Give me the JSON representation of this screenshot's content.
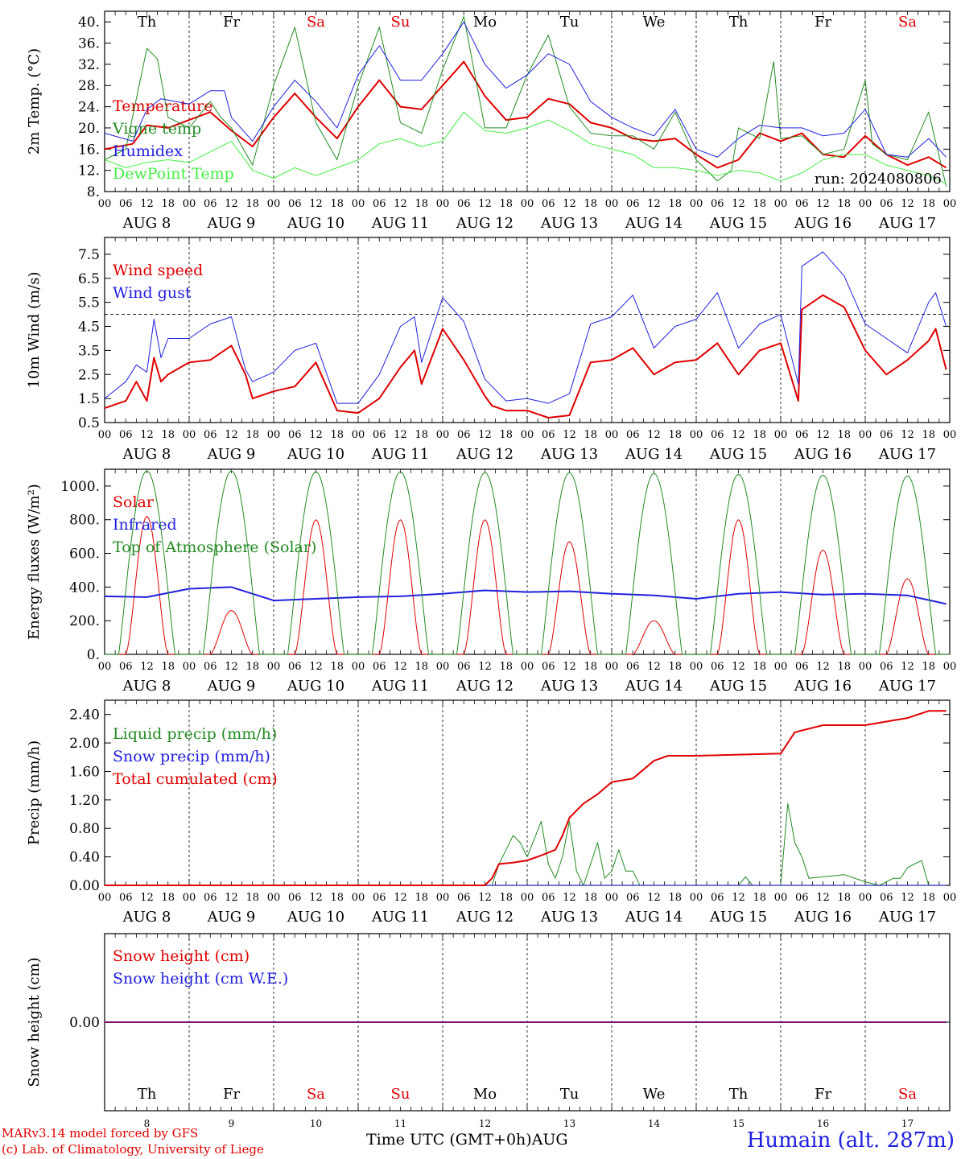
{
  "chart_data": [
    {
      "type": "line",
      "ylabel": "2m Temp. (°C)",
      "ylim": [
        8,
        42
      ],
      "yticks": [
        "8.",
        "12.",
        "16.",
        "20.",
        "24.",
        "28.",
        "32.",
        "36.",
        "40."
      ],
      "annotation": "run: 2024080806",
      "top_day_labels": [
        {
          "text": "Th",
          "color": "#000000"
        },
        {
          "text": "Fr",
          "color": "#000000"
        },
        {
          "text": "Sa",
          "color": "#e00000"
        },
        {
          "text": "Su",
          "color": "#e00000"
        },
        {
          "text": "Mo",
          "color": "#000000"
        },
        {
          "text": "Tu",
          "color": "#000000"
        },
        {
          "text": "We",
          "color": "#000000"
        },
        {
          "text": "Th",
          "color": "#000000"
        },
        {
          "text": "Fr",
          "color": "#000000"
        },
        {
          "text": "Sa",
          "color": "#e00000"
        }
      ],
      "series": [
        {
          "name": "Temperature",
          "color": "#e00000",
          "width": 2,
          "x": [
            0,
            8,
            12,
            18,
            24,
            30,
            36,
            42,
            48,
            54,
            60,
            66,
            72,
            78,
            84,
            90,
            96,
            102,
            108,
            114,
            120,
            126,
            132,
            138,
            144,
            150,
            156,
            162,
            168,
            174,
            180,
            186,
            192,
            198,
            204,
            210,
            216,
            222,
            228,
            234,
            239
          ],
          "values": [
            16,
            17,
            20.5,
            20,
            21.5,
            23,
            19.5,
            16.5,
            22,
            26.5,
            22,
            18,
            24,
            29,
            24,
            23.5,
            28,
            32.5,
            26,
            21.5,
            22,
            25.5,
            24.5,
            21,
            20,
            18,
            17.5,
            18,
            15,
            12.5,
            14,
            19,
            17.5,
            19,
            15,
            14.5,
            18.5,
            15,
            13,
            14.5,
            12.5
          ]
        },
        {
          "name": "Vigne temp",
          "color": "#228b22",
          "width": 1,
          "x": [
            0,
            6,
            12,
            15,
            18,
            24,
            30,
            33,
            36,
            42,
            48,
            54,
            60,
            66,
            72,
            78,
            84,
            90,
            96,
            102,
            108,
            114,
            120,
            126,
            132,
            138,
            144,
            150,
            156,
            162,
            168,
            174,
            178,
            180,
            186,
            190,
            192,
            198,
            204,
            210,
            216,
            218,
            222,
            228,
            234,
            239
          ],
          "values": [
            14,
            16,
            35,
            33,
            22,
            20,
            25,
            22,
            20,
            13,
            28,
            39,
            21,
            14,
            28,
            39,
            21,
            19,
            31,
            41,
            20,
            20,
            30,
            37.5,
            24,
            19,
            18.5,
            18.5,
            16,
            23,
            14,
            10,
            12,
            20,
            18,
            32.5,
            18,
            18.5,
            15,
            16,
            29,
            17,
            15,
            14,
            23,
            9
          ]
        },
        {
          "name": "Humidex",
          "color": "#2020e0",
          "width": 1,
          "x": [
            0,
            8,
            12,
            16,
            20,
            24,
            30,
            34,
            36,
            42,
            48,
            54,
            60,
            66,
            72,
            78,
            84,
            90,
            96,
            102,
            108,
            114,
            120,
            126,
            132,
            138,
            144,
            150,
            156,
            162,
            168,
            174,
            180,
            186,
            192,
            198,
            204,
            210,
            216,
            222,
            228,
            234,
            239
          ],
          "values": [
            19,
            17.5,
            23.5,
            25.5,
            25,
            24.5,
            27,
            27,
            22,
            17.5,
            24,
            29,
            25,
            20,
            30,
            35.5,
            29,
            29,
            34,
            40,
            32,
            27.5,
            30,
            34,
            32,
            25,
            22,
            20,
            18.5,
            23.5,
            16,
            14.5,
            18,
            20.5,
            20,
            20,
            18.5,
            19,
            23.5,
            15,
            14.5,
            18,
            14.5
          ]
        },
        {
          "name": "DewPoint Temp",
          "color": "#44ee44",
          "width": 1,
          "x": [
            0,
            6,
            12,
            18,
            24,
            30,
            36,
            42,
            48,
            54,
            60,
            66,
            72,
            78,
            84,
            90,
            96,
            102,
            108,
            114,
            120,
            126,
            132,
            138,
            144,
            150,
            156,
            162,
            168,
            174,
            180,
            186,
            192,
            198,
            204,
            210,
            216,
            222,
            228,
            234,
            239
          ],
          "values": [
            14,
            12.5,
            13.5,
            14,
            13.5,
            15.5,
            17.5,
            12,
            10.5,
            12.5,
            11,
            12.5,
            14,
            17,
            18,
            16.5,
            17.5,
            23,
            19.5,
            19,
            20,
            21.5,
            19.5,
            17,
            16,
            15,
            12.5,
            12.5,
            12,
            11,
            12,
            11.5,
            10,
            11.5,
            14,
            15,
            15,
            13,
            12,
            11,
            9.5
          ]
        }
      ]
    },
    {
      "type": "line",
      "ylabel": "10m Wind (m/s)",
      "ylim": [
        0.5,
        8.2
      ],
      "yticks": [
        "0.5",
        "1.5",
        "2.5",
        "3.5",
        "4.5",
        "5.5",
        "6.5",
        "7.5"
      ],
      "reference_line": 5,
      "series": [
        {
          "name": "Wind speed",
          "color": "#e00000",
          "width": 2,
          "x": [
            0,
            6,
            9,
            12,
            14,
            16,
            18,
            24,
            30,
            36,
            40,
            42,
            48,
            54,
            60,
            66,
            72,
            78,
            84,
            88,
            90,
            96,
            102,
            108,
            110,
            114,
            120,
            126,
            132,
            138,
            144,
            150,
            156,
            162,
            168,
            174,
            180,
            186,
            192,
            197,
            198,
            204,
            210,
            216,
            222,
            228,
            234,
            236,
            239
          ],
          "values": [
            1.1,
            1.4,
            2.2,
            1.4,
            3.2,
            2.2,
            2.5,
            3,
            3.1,
            3.7,
            2.5,
            1.5,
            1.8,
            2,
            3,
            1,
            0.9,
            1.5,
            2.8,
            3.5,
            2.1,
            4.4,
            3.1,
            1.6,
            1.2,
            1,
            1,
            0.7,
            0.8,
            3,
            3.1,
            3.6,
            2.5,
            3,
            3.1,
            3.8,
            2.5,
            3.5,
            3.8,
            1.4,
            5.2,
            5.8,
            5.3,
            3.5,
            2.5,
            3.1,
            3.9,
            4.4,
            2.7
          ]
        },
        {
          "name": "Wind gust",
          "color": "#2020e0",
          "width": 1,
          "x": [
            0,
            6,
            9,
            12,
            14,
            16,
            18,
            24,
            30,
            36,
            40,
            42,
            48,
            54,
            60,
            66,
            72,
            78,
            84,
            88,
            90,
            96,
            102,
            108,
            110,
            114,
            120,
            126,
            132,
            138,
            144,
            150,
            156,
            162,
            168,
            174,
            180,
            186,
            192,
            197,
            198,
            204,
            210,
            216,
            222,
            228,
            234,
            236,
            239
          ],
          "values": [
            1.5,
            2.2,
            2.9,
            2.6,
            4.8,
            3.2,
            4,
            4,
            4.6,
            4.9,
            2.7,
            2.2,
            2.6,
            3.5,
            3.8,
            1.3,
            1.3,
            2.5,
            4.5,
            4.9,
            3,
            5.7,
            4.7,
            2.3,
            2,
            1.4,
            1.5,
            1.3,
            1.7,
            4.6,
            4.9,
            5.8,
            3.6,
            4.5,
            4.8,
            5.9,
            3.6,
            4.6,
            5,
            2.1,
            7,
            7.6,
            6.6,
            4.6,
            4,
            3.4,
            5.5,
            5.9,
            4.5
          ]
        }
      ]
    },
    {
      "type": "line",
      "ylabel": "Energy fluxes (W/m²)",
      "ylim": [
        0,
        1100
      ],
      "yticks": [
        "0.",
        "200.",
        "400.",
        "600.",
        "800.",
        "1000."
      ],
      "series": [
        {
          "name": "Solar",
          "color": "#e00000",
          "width": 1,
          "daily_peaks": [
            820,
            260,
            800,
            800,
            800,
            670,
            200,
            800,
            620,
            450
          ]
        },
        {
          "name": "Infrared",
          "color": "#2020e0",
          "width": 2,
          "x": [
            0,
            12,
            24,
            36,
            48,
            60,
            72,
            84,
            96,
            108,
            120,
            132,
            144,
            156,
            168,
            180,
            192,
            204,
            216,
            228,
            239
          ],
          "values": [
            345,
            340,
            390,
            400,
            320,
            330,
            340,
            345,
            360,
            380,
            370,
            375,
            360,
            350,
            330,
            360,
            370,
            355,
            360,
            350,
            300
          ]
        },
        {
          "name": "Top of Atmosphere (Solar)",
          "color": "#228b22",
          "width": 1,
          "daily_peaks": [
            1090,
            1090,
            1085,
            1085,
            1080,
            1080,
            1075,
            1070,
            1065,
            1060
          ]
        }
      ]
    },
    {
      "type": "line",
      "ylabel": "Precip (mm/h)",
      "ylim": [
        0,
        2.6
      ],
      "yticks": [
        "0.00",
        "0.40",
        "0.80",
        "1.20",
        "1.60",
        "2.00",
        "2.40"
      ],
      "series": [
        {
          "name": "Liquid precip (mm/h)",
          "color": "#228b22",
          "width": 1,
          "x": [
            0,
            110,
            112,
            114,
            116,
            118,
            120,
            124,
            126,
            128,
            130,
            132,
            134,
            136,
            138,
            140,
            142,
            144,
            146,
            148,
            150,
            152,
            154,
            156,
            158,
            160,
            180,
            182,
            184,
            192,
            194,
            196,
            198,
            200,
            210,
            216,
            220,
            224,
            226,
            228,
            230,
            232,
            234,
            239
          ],
          "values": [
            0,
            0,
            0.3,
            0.5,
            0.7,
            0.6,
            0.4,
            0.9,
            0.3,
            0.1,
            0.4,
            0.9,
            0.2,
            0,
            0.3,
            0.6,
            0.1,
            0.2,
            0.5,
            0.2,
            0.2,
            0,
            0,
            0,
            0,
            0,
            0,
            0.12,
            0,
            0,
            1.15,
            0.6,
            0.4,
            0.1,
            0.15,
            0.05,
            0,
            0.1,
            0.1,
            0.25,
            0.3,
            0.35,
            0,
            0
          ]
        },
        {
          "name": "Snow precip (mm/h)",
          "color": "#2020e0",
          "width": 1,
          "x": [
            0,
            239
          ],
          "values": [
            0,
            0
          ]
        },
        {
          "name": "Total cumulated (cm)",
          "color": "#e00000",
          "width": 2,
          "x": [
            0,
            108,
            110,
            112,
            116,
            120,
            124,
            128,
            130,
            132,
            136,
            140,
            144,
            150,
            156,
            160,
            168,
            192,
            196,
            200,
            204,
            210,
            216,
            222,
            228,
            234,
            239
          ],
          "values": [
            0,
            0,
            0.1,
            0.3,
            0.32,
            0.35,
            0.42,
            0.5,
            0.7,
            0.95,
            1.15,
            1.28,
            1.45,
            1.5,
            1.75,
            1.82,
            1.82,
            1.85,
            2.15,
            2.2,
            2.25,
            2.25,
            2.25,
            2.3,
            2.35,
            2.45,
            2.45
          ]
        }
      ]
    },
    {
      "type": "line",
      "ylabel": "Snow height (cm)",
      "ylim": [
        -1,
        1
      ],
      "yticks": [
        "0.00"
      ],
      "series": [
        {
          "name": "Snow height (cm)",
          "color": "#e00000",
          "width": 2,
          "x": [
            0,
            239
          ],
          "values": [
            0,
            0
          ]
        },
        {
          "name": "Snow height (cm W.E.)",
          "color": "#2020e0",
          "width": 1,
          "x": [
            0,
            239
          ],
          "values": [
            0,
            0
          ]
        }
      ],
      "bottom_day_labels": [
        {
          "day": "Th",
          "date": "8",
          "color": "#000000"
        },
        {
          "day": "Fr",
          "date": "9",
          "color": "#000000"
        },
        {
          "day": "Sa",
          "date": "10",
          "color": "#e00000"
        },
        {
          "day": "Su",
          "date": "11",
          "color": "#e00000"
        },
        {
          "day": "Mo",
          "date": "12",
          "color": "#000000"
        },
        {
          "day": "Tu",
          "date": "13",
          "color": "#000000"
        },
        {
          "day": "We",
          "date": "14",
          "color": "#000000"
        },
        {
          "day": "Th",
          "date": "15",
          "color": "#000000"
        },
        {
          "day": "Fr",
          "date": "16",
          "color": "#000000"
        },
        {
          "day": "Sa",
          "date": "17",
          "color": "#e00000"
        }
      ]
    }
  ],
  "x_hour_labels": [
    "00",
    "06",
    "12",
    "18"
  ],
  "x_date_labels": [
    "AUG 8",
    "AUG 9",
    "AUG 10",
    "AUG 11",
    "AUG 12",
    "AUG 13",
    "AUG 14",
    "AUG 15",
    "AUG 16",
    "AUG 17"
  ],
  "xaxis_title": "Time UTC (GMT+0h)AUG",
  "credit_line1": "MARv3.14 model forced by GFS",
  "credit_line2": "(c) Lab. of Climatology, University of Liege",
  "station": "Humain (alt. 287m)"
}
